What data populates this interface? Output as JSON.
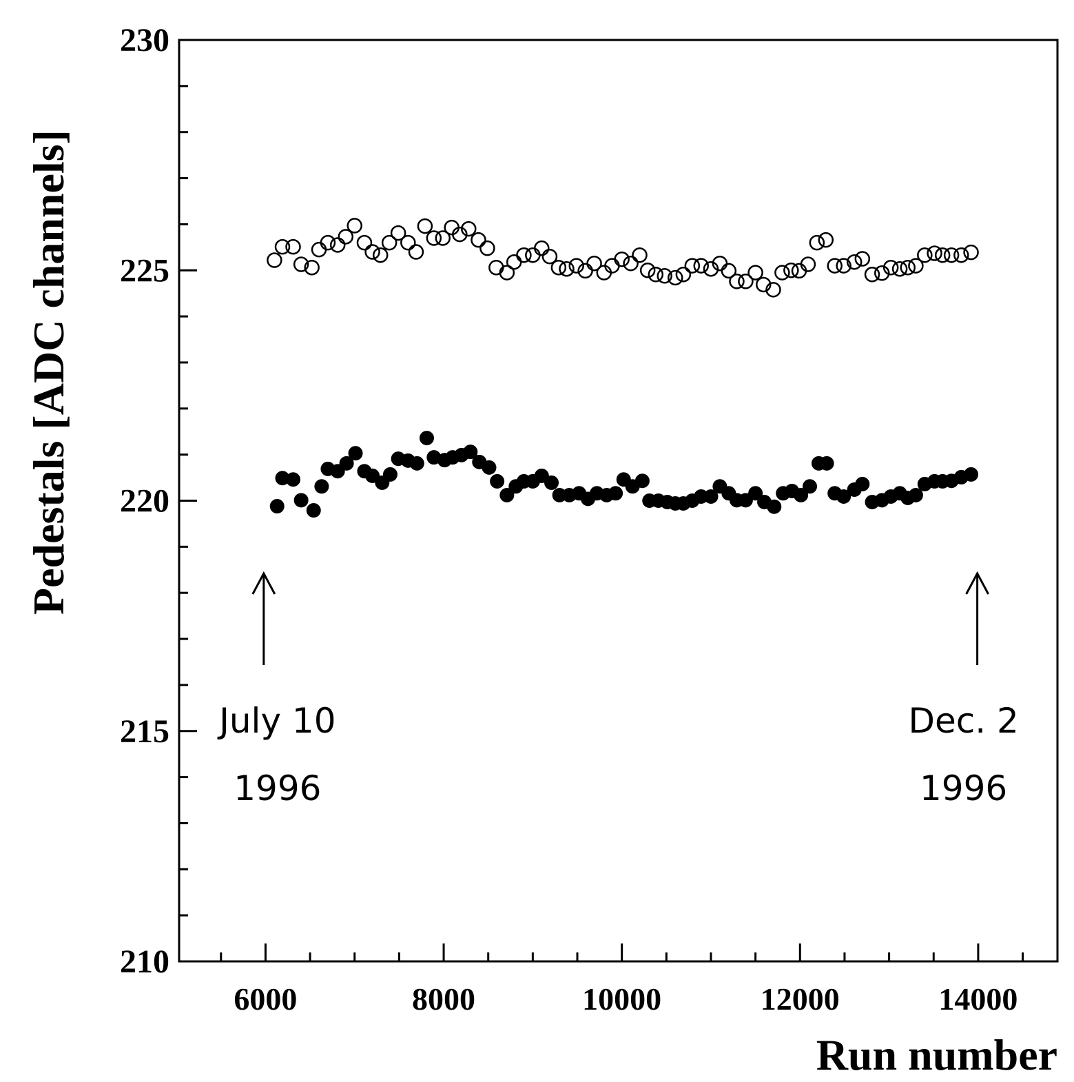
{
  "chart_data": {
    "type": "scatter",
    "xlabel": "Run number",
    "ylabel": "Pedestals [ADC channels]",
    "xlim": [
      5030,
      14890
    ],
    "ylim": [
      210,
      230
    ],
    "xticks": [
      6000,
      8000,
      10000,
      12000,
      14000
    ],
    "yticks": [
      210,
      215,
      220,
      225,
      230
    ],
    "xminorticks": [
      5500,
      6500,
      7000,
      7500,
      8500,
      9000,
      9500,
      10500,
      11000,
      11500,
      12500,
      13000,
      13500,
      14500
    ],
    "yminorticks": [
      211,
      212,
      213,
      214,
      216,
      217,
      218,
      219,
      221,
      222,
      223,
      224,
      226,
      227,
      228,
      229
    ],
    "series": [
      {
        "marker": "open",
        "color": "#000000",
        "x": [
          6100,
          6190,
          6310,
          6400,
          6520,
          6600,
          6700,
          6810,
          6900,
          7000,
          7110,
          7200,
          7290,
          7390,
          7490,
          7600,
          7690,
          7790,
          7890,
          7990,
          8090,
          8180,
          8280,
          8390,
          8490,
          8590,
          8710,
          8790,
          8900,
          9000,
          9100,
          9190,
          9290,
          9380,
          9490,
          9590,
          9690,
          9800,
          9890,
          10000,
          10100,
          10200,
          10290,
          10380,
          10480,
          10600,
          10690,
          10790,
          10890,
          11000,
          11100,
          11200,
          11290,
          11390,
          11500,
          11590,
          11700,
          11800,
          11900,
          11990,
          12090,
          12190,
          12290,
          12390,
          12490,
          12610,
          12700,
          12810,
          12920,
          13020,
          13120,
          13210,
          13300,
          13400,
          13510,
          13600,
          13700,
          13810,
          13920
        ],
        "values": [
          225.22,
          225.51,
          225.51,
          225.13,
          225.06,
          225.45,
          225.6,
          225.55,
          225.73,
          225.97,
          225.6,
          225.4,
          225.33,
          225.6,
          225.81,
          225.6,
          225.4,
          225.96,
          225.7,
          225.7,
          225.93,
          225.78,
          225.9,
          225.66,
          225.48,
          225.06,
          224.95,
          225.18,
          225.33,
          225.33,
          225.48,
          225.3,
          225.06,
          225.03,
          225.1,
          224.99,
          225.15,
          224.95,
          225.1,
          225.24,
          225.15,
          225.33,
          225.0,
          224.91,
          224.88,
          224.84,
          224.91,
          225.1,
          225.1,
          225.03,
          225.15,
          224.99,
          224.76,
          224.76,
          224.95,
          224.69,
          224.58,
          224.95,
          225.0,
          224.99,
          225.13,
          225.6,
          225.66,
          225.1,
          225.1,
          225.18,
          225.25,
          224.91,
          224.94,
          225.06,
          225.03,
          225.06,
          225.1,
          225.33,
          225.37,
          225.33,
          225.33,
          225.33,
          225.39
        ]
      },
      {
        "marker": "filled",
        "color": "#000000",
        "x": [
          6130,
          6190,
          6310,
          6400,
          6540,
          6630,
          6700,
          6810,
          6910,
          7010,
          7110,
          7200,
          7310,
          7400,
          7490,
          7600,
          7700,
          7810,
          7890,
          8010,
          8100,
          8200,
          8300,
          8400,
          8510,
          8600,
          8710,
          8810,
          8900,
          9000,
          9100,
          9210,
          9300,
          9410,
          9520,
          9620,
          9720,
          9830,
          9930,
          10020,
          10120,
          10230,
          10310,
          10410,
          10510,
          10600,
          10690,
          10790,
          10890,
          11000,
          11100,
          11200,
          11290,
          11390,
          11500,
          11600,
          11710,
          11810,
          11910,
          12010,
          12110,
          12210,
          12300,
          12390,
          12490,
          12610,
          12700,
          12810,
          12920,
          13020,
          13120,
          13210,
          13300,
          13400,
          13510,
          13600,
          13700,
          13810,
          13920
        ],
        "values": [
          219.88,
          220.49,
          220.46,
          220.01,
          219.79,
          220.31,
          220.69,
          220.64,
          220.81,
          221.03,
          220.64,
          220.54,
          220.39,
          220.57,
          220.91,
          220.87,
          220.81,
          221.36,
          220.94,
          220.88,
          220.94,
          220.99,
          221.06,
          220.84,
          220.72,
          220.42,
          220.12,
          220.31,
          220.42,
          220.42,
          220.54,
          220.39,
          220.12,
          220.12,
          220.16,
          220.04,
          220.16,
          220.12,
          220.16,
          220.46,
          220.31,
          220.43,
          220.0,
          220.0,
          219.97,
          219.94,
          219.94,
          220.0,
          220.09,
          220.09,
          220.31,
          220.16,
          220.01,
          220.01,
          220.16,
          219.97,
          219.87,
          220.16,
          220.21,
          220.12,
          220.31,
          220.81,
          220.81,
          220.16,
          220.09,
          220.24,
          220.36,
          219.97,
          220.01,
          220.09,
          220.16,
          220.06,
          220.12,
          220.36,
          220.42,
          220.42,
          220.43,
          220.51,
          220.57
        ]
      }
    ],
    "annotations": [
      {
        "lines": [
          "July 10",
          "1996"
        ],
        "x": 5980
      },
      {
        "lines": [
          "Dec. 2",
          "1996"
        ],
        "x": 13990
      }
    ]
  }
}
